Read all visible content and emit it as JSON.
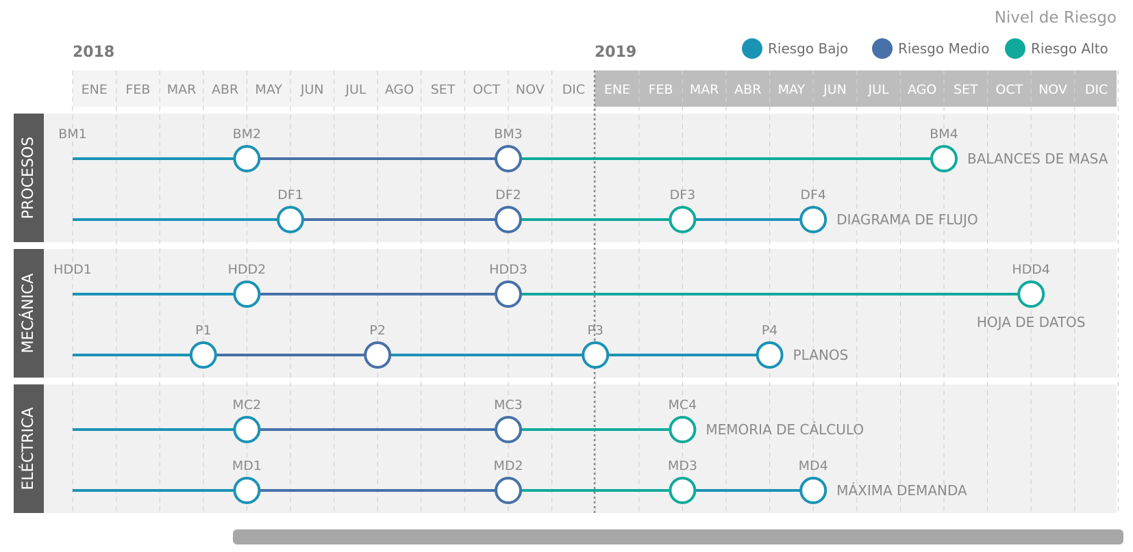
{
  "header": {
    "title": "Nivel de Riesgo",
    "year_2018": "2018",
    "year_2019": "2019"
  },
  "legend": [
    {
      "label": "Riesgo Bajo",
      "color": "#1b93b5"
    },
    {
      "label": "Riesgo Medio",
      "color": "#4771a8"
    },
    {
      "label": "Riesgo Alto",
      "color": "#10aa9d"
    }
  ],
  "months_2018": [
    "ENE",
    "FEB",
    "MAR",
    "ABR",
    "MAY",
    "JUN",
    "JUL",
    "AGO",
    "SET",
    "OCT",
    "NOV",
    "DIC"
  ],
  "months_2019": [
    "ENE",
    "FEB",
    "MAR",
    "ABR",
    "MAY",
    "JUN",
    "JUL",
    "AGO",
    "SET",
    "OCT",
    "NOV",
    "DIC"
  ],
  "colors": {
    "low": "#1b93b5",
    "medium": "#4771a8",
    "high": "#10aa9d",
    "band": "#f1f1f1",
    "section_label_bg": "#5a5a5a",
    "header_2019_bg": "#bdbdbd"
  },
  "sections": [
    {
      "label": "PROCESOS",
      "rows": [
        {
          "name": "BALANCES DE MASA",
          "start_label": "BM1",
          "start_month": 0,
          "milestones": [
            {
              "label": "BM2",
              "month": 4,
              "color": "low"
            },
            {
              "label": "BM3",
              "month": 10,
              "color": "medium"
            },
            {
              "label": "BM4",
              "month": 20,
              "color": "high"
            }
          ]
        },
        {
          "name": "DIAGRAMA DE FLUJO",
          "start_label": "",
          "start_month": 0,
          "milestones": [
            {
              "label": "DF1",
              "month": 5,
              "color": "low"
            },
            {
              "label": "DF2",
              "month": 10,
              "color": "medium"
            },
            {
              "label": "DF3",
              "month": 14,
              "color": "high"
            },
            {
              "label": "DF4",
              "month": 17,
              "color": "low"
            }
          ]
        }
      ]
    },
    {
      "label": "MECÁNICA",
      "rows": [
        {
          "name": "HOJA DE DATOS",
          "start_label": "HDD1",
          "start_month": 0,
          "milestones": [
            {
              "label": "HDD2",
              "month": 4,
              "color": "low"
            },
            {
              "label": "HDD3",
              "month": 10,
              "color": "medium"
            },
            {
              "label": "HDD4",
              "month": 22,
              "color": "high"
            }
          ]
        },
        {
          "name": "PLANOS",
          "start_label": "",
          "start_month": 0,
          "milestones": [
            {
              "label": "P1",
              "month": 3,
              "color": "low"
            },
            {
              "label": "P2",
              "month": 7,
              "color": "medium"
            },
            {
              "label": "P3",
              "month": 12,
              "color": "low"
            },
            {
              "label": "P4",
              "month": 16,
              "color": "low"
            }
          ]
        }
      ]
    },
    {
      "label": "ELÉCTRICA",
      "rows": [
        {
          "name": "MEMORIA DE CÁLCULO",
          "start_label": "",
          "start_month": 0,
          "milestones": [
            {
              "label": "MC2",
              "month": 4,
              "color": "low"
            },
            {
              "label": "MC3",
              "month": 10,
              "color": "medium"
            },
            {
              "label": "MC4",
              "month": 14,
              "color": "high"
            }
          ]
        },
        {
          "name": "MÁXIMA DEMANDA",
          "start_label": "",
          "start_month": 0,
          "milestones": [
            {
              "label": "MD1",
              "month": 4,
              "color": "low"
            },
            {
              "label": "MD2",
              "month": 10,
              "color": "medium"
            },
            {
              "label": "MD3",
              "month": 14,
              "color": "high"
            },
            {
              "label": "MD4",
              "month": 17,
              "color": "low"
            }
          ]
        }
      ]
    }
  ]
}
